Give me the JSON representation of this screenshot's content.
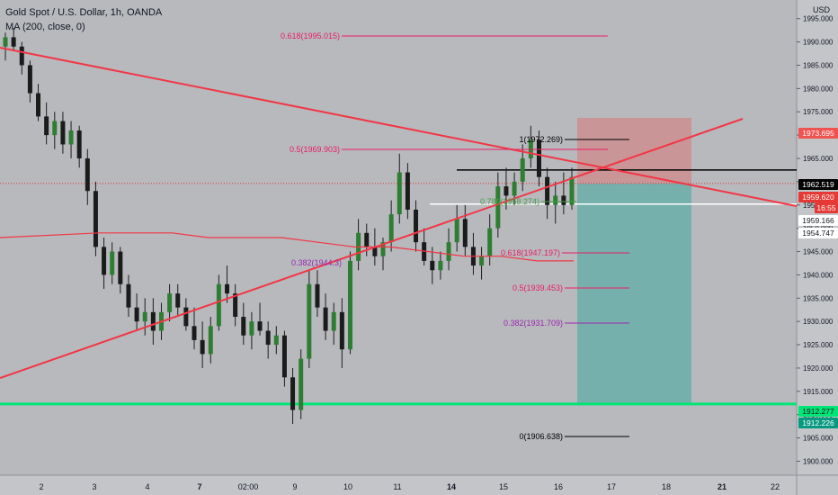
{
  "header": {
    "title": "Gold Spot / U.S. Dollar, 1h, OANDA",
    "indicator": "MA (200, close, 0)",
    "currency": "USD"
  },
  "chart_data": {
    "type": "candlestick",
    "title": "Gold Spot / U.S. Dollar, 1h, OANDA",
    "y_axis": {
      "min": 1900,
      "max": 1995,
      "scale": "linear",
      "ticks": [
        "1900.000",
        "1905.000",
        "1910.000",
        "1915.000",
        "1920.000",
        "1925.000",
        "1930.000",
        "1935.000",
        "1940.000",
        "1945.000",
        "1950.000",
        "1955.000",
        "1960.000",
        "1965.000",
        "1970.000",
        "1975.000",
        "1980.000",
        "1985.000",
        "1990.000",
        "1995.000"
      ]
    },
    "x_axis": {
      "ticks": [
        "2",
        "3",
        "4",
        "7",
        "02:00",
        "9",
        "10",
        "11",
        "14",
        "15",
        "16",
        "17",
        "18",
        "21",
        "22"
      ]
    },
    "colors": {
      "bull": "#26a69a",
      "bear": "#ef5350",
      "trend_line": "#f23645",
      "ma": "#f23645",
      "target_line": "#00e676",
      "entry_line": "#000000",
      "support_line": "#ffffff",
      "fib_pink": "#e91e63",
      "fib_purple": "#9c27b0",
      "fib_green": "#43a047"
    },
    "candles": [
      [
        1989,
        1992,
        1986,
        1991
      ],
      [
        1991,
        1993,
        1988,
        1989
      ],
      [
        1989,
        1990,
        1983,
        1985
      ],
      [
        1985,
        1986,
        1977,
        1979
      ],
      [
        1979,
        1981,
        1973,
        1974
      ],
      [
        1974,
        1977,
        1968,
        1970
      ],
      [
        1970,
        1975,
        1967,
        1973
      ],
      [
        1973,
        1975,
        1966,
        1968
      ],
      [
        1968,
        1973,
        1965,
        1971
      ],
      [
        1971,
        1972,
        1963,
        1965
      ],
      [
        1965,
        1967,
        1955,
        1958
      ],
      [
        1958,
        1960,
        1944,
        1946
      ],
      [
        1946,
        1948,
        1937,
        1940
      ],
      [
        1940,
        1947,
        1938,
        1945
      ],
      [
        1945,
        1946,
        1936,
        1938
      ],
      [
        1938,
        1940,
        1931,
        1933
      ],
      [
        1933,
        1936,
        1928,
        1930
      ],
      [
        1930,
        1935,
        1927,
        1932
      ],
      [
        1932,
        1935,
        1925,
        1928
      ],
      [
        1928,
        1934,
        1926,
        1932
      ],
      [
        1932,
        1938,
        1930,
        1936
      ],
      [
        1936,
        1938,
        1931,
        1933
      ],
      [
        1933,
        1935,
        1928,
        1929
      ],
      [
        1929,
        1933,
        1924,
        1926
      ],
      [
        1926,
        1930,
        1920,
        1923
      ],
      [
        1923,
        1931,
        1921,
        1929
      ],
      [
        1929,
        1940,
        1928,
        1938
      ],
      [
        1938,
        1942,
        1934,
        1936
      ],
      [
        1936,
        1938,
        1929,
        1931
      ],
      [
        1931,
        1934,
        1925,
        1927
      ],
      [
        1927,
        1932,
        1924,
        1930
      ],
      [
        1930,
        1934,
        1927,
        1928
      ],
      [
        1928,
        1930,
        1922,
        1925
      ],
      [
        1925,
        1929,
        1923,
        1927
      ],
      [
        1927,
        1928,
        1916,
        1918
      ],
      [
        1918,
        1920,
        1908,
        1911
      ],
      [
        1911,
        1924,
        1909,
        1922
      ],
      [
        1922,
        1941,
        1920,
        1938
      ],
      [
        1938,
        1941,
        1931,
        1933
      ],
      [
        1933,
        1936,
        1926,
        1928
      ],
      [
        1928,
        1934,
        1925,
        1932
      ],
      [
        1932,
        1935,
        1920,
        1924
      ],
      [
        1924,
        1945,
        1923,
        1943
      ],
      [
        1943,
        1952,
        1941,
        1949
      ],
      [
        1949,
        1951,
        1944,
        1946
      ],
      [
        1946,
        1950,
        1942,
        1944
      ],
      [
        1944,
        1948,
        1941,
        1947
      ],
      [
        1947,
        1956,
        1945,
        1953
      ],
      [
        1953,
        1966,
        1951,
        1962
      ],
      [
        1962,
        1964,
        1952,
        1954
      ],
      [
        1954,
        1956,
        1945,
        1947
      ],
      [
        1947,
        1950,
        1942,
        1943
      ],
      [
        1943,
        1946,
        1938,
        1941
      ],
      [
        1941,
        1945,
        1939,
        1943
      ],
      [
        1943,
        1950,
        1941,
        1947
      ],
      [
        1947,
        1955,
        1945,
        1952
      ],
      [
        1952,
        1955,
        1944,
        1946
      ],
      [
        1946,
        1949,
        1940,
        1942
      ],
      [
        1942,
        1946,
        1939,
        1944
      ],
      [
        1944,
        1953,
        1942,
        1950
      ],
      [
        1950,
        1962,
        1948,
        1959
      ],
      [
        1959,
        1963,
        1954,
        1957
      ],
      [
        1957,
        1962,
        1955,
        1960
      ],
      [
        1960,
        1968,
        1958,
        1965
      ],
      [
        1965,
        1972,
        1963,
        1969
      ],
      [
        1969,
        1971,
        1959,
        1961
      ],
      [
        1961,
        1963,
        1952,
        1955
      ],
      [
        1955,
        1960,
        1951,
        1957
      ],
      [
        1957,
        1962,
        1953,
        1955
      ],
      [
        1955,
        1963,
        1954,
        1961
      ]
    ],
    "ma_200": [
      1948,
      1949,
      1949,
      1949,
      1948,
      1948,
      1948,
      1947,
      1946,
      1946,
      1945,
      1944,
      1944,
      1943,
      1943
    ],
    "fibonacci": [
      {
        "label": "0.618(1995.015)",
        "price": 1995.015,
        "color": "pink"
      },
      {
        "label": "1(1972.269)",
        "price": 1972.269,
        "color": "black"
      },
      {
        "label": "0.5(1969.903)",
        "price": 1969.903,
        "color": "pink"
      },
      {
        "label": "0.618(1947.197)",
        "price": 1947.197,
        "color": "pink"
      },
      {
        "label": "0.382(1944.3)",
        "price": 1944.3,
        "color": "purple"
      },
      {
        "label": "0.5(1939.453)",
        "price": 1939.453,
        "color": "pink"
      },
      {
        "label": "0.382(1931.709)",
        "price": 1931.709,
        "color": "purple"
      },
      {
        "label": "0(1906.638)",
        "price": 1906.638,
        "color": "black"
      },
      {
        "label": "0.786(1958.274)",
        "price": 1958.274,
        "color": "green"
      }
    ],
    "price_tags": [
      {
        "value": "1973.695",
        "price": 1973.695,
        "bg": "#ef5350",
        "fg": "#ffffff"
      },
      {
        "value": "1962.519",
        "price": 1962.519,
        "bg": "#000000",
        "fg": "#ffffff"
      },
      {
        "value": "1959.620",
        "price": 1959.62,
        "bg": "#e53935",
        "fg": "#ffffff"
      },
      {
        "value": "16:55",
        "price": 1957.6,
        "bg": "#e53935",
        "fg": "#ffffff"
      },
      {
        "value": "1959.166",
        "price": 1955.2,
        "bg": "#ffffff",
        "fg": "#131722"
      },
      {
        "value": "1954.747",
        "price": 1952.8,
        "bg": "#ffffff",
        "fg": "#131722"
      },
      {
        "value": "1912.277",
        "price": 1912.277,
        "bg": "#00e676",
        "fg": "#131722"
      },
      {
        "value": "1912.226",
        "price": 1910.0,
        "bg": "#089981",
        "fg": "#ffffff"
      }
    ],
    "position": {
      "entry": 1962.519,
      "stop": 1973.695,
      "target": 1912.277
    },
    "horizontal_levels": {
      "target": 1912.277,
      "entry": 1962.519,
      "support": 1955.2,
      "current": 1959.62
    }
  }
}
